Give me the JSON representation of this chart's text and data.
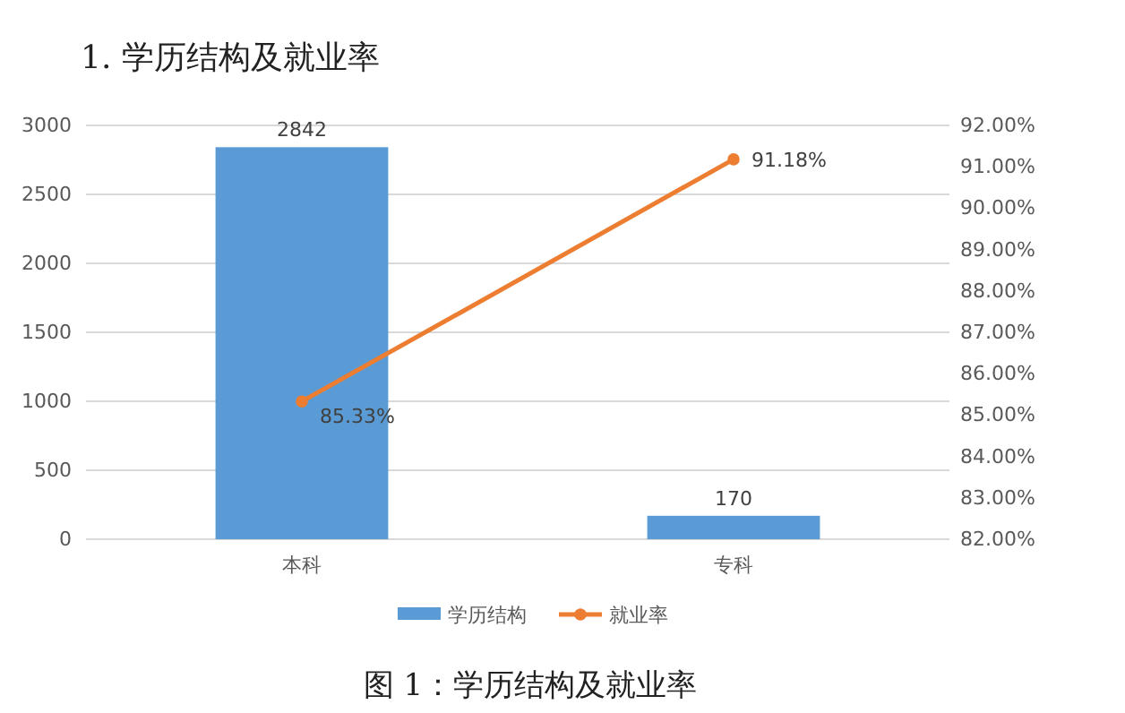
{
  "chart_data": {
    "type": "bar",
    "title": "1. 学历结构及就业率",
    "annotations": [
      "图 1：学历结构及就业率"
    ],
    "categories": [
      "本科",
      "专科"
    ],
    "series": [
      {
        "name": "学历结构",
        "color": "#5b9bd5",
        "values": [
          2842,
          170
        ],
        "value_labels": [
          "2842",
          "170"
        ]
      },
      {
        "name": "就业率",
        "type": "line",
        "axis": "y2",
        "color": "#ed7d31",
        "values": [
          85.33,
          91.18
        ],
        "value_labels": [
          "85.33%",
          "91.18%"
        ]
      }
    ],
    "ylim": [
      0,
      3000
    ],
    "yticks": [
      0,
      500,
      1000,
      1500,
      2000,
      2500,
      3000
    ],
    "y2lim": [
      82,
      92
    ],
    "y2ticks": [
      {
        "value": 82,
        "label": "82.00%"
      },
      {
        "value": 83,
        "label": "83.00%"
      },
      {
        "value": 84,
        "label": "84.00%"
      },
      {
        "value": 85,
        "label": "85.00%"
      },
      {
        "value": 86,
        "label": "86.00%"
      },
      {
        "value": 87,
        "label": "87.00%"
      },
      {
        "value": 88,
        "label": "88.00%"
      },
      {
        "value": 89,
        "label": "89.00%"
      },
      {
        "value": 90,
        "label": "90.00%"
      },
      {
        "value": 91,
        "label": "91.00%"
      },
      {
        "value": 92,
        "label": "92.00%"
      }
    ],
    "grid": "y",
    "legend": "bottom",
    "marker": "circle",
    "line_style": "solid"
  }
}
